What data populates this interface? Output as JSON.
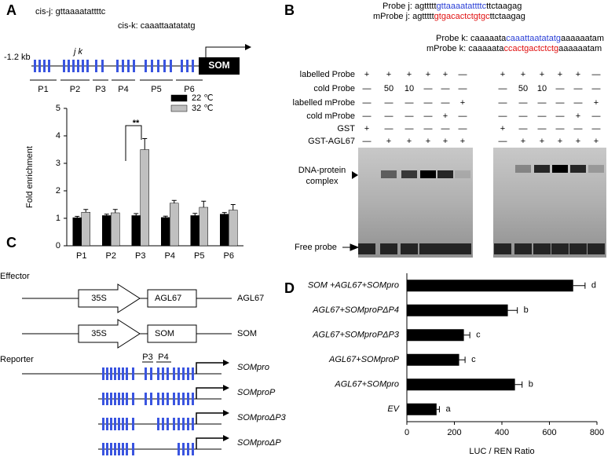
{
  "panel_letters": [
    "A",
    "B",
    "C",
    "D"
  ],
  "panel_a": {
    "cis_j": "cis-j: gttaaaatattttc",
    "cis_k": "cis-k: caaattaatatatg",
    "distance": "-1.2 kb",
    "sites": "j k",
    "gene": "SOM",
    "regions": [
      "P1",
      "P2",
      "P3",
      "P4",
      "P5",
      "P6"
    ],
    "annotation": "**"
  },
  "panel_b": {
    "probes": [
      {
        "label": "Probe j:",
        "parts": [
          {
            "text": "agttttt",
            "color": "#000000"
          },
          {
            "text": "gttaaaatattttc",
            "color": "#2a3fd6"
          },
          {
            "text": "ttctaagag",
            "color": "#000000"
          }
        ]
      },
      {
        "label": "mProbe j:",
        "parts": [
          {
            "text": "agttttt",
            "color": "#000000"
          },
          {
            "text": "gtgacactctgtgc",
            "color": "#e01010"
          },
          {
            "text": "ttctaagag",
            "color": "#000000"
          }
        ]
      },
      {
        "label": "Probe k:",
        "parts": [
          {
            "text": "caaaaata",
            "color": "#000000"
          },
          {
            "text": "caaattaatatatg",
            "color": "#2a3fd6"
          },
          {
            "text": "aaaaaatam",
            "color": "#000000"
          }
        ]
      },
      {
        "label": "mProbe k:",
        "parts": [
          {
            "text": "caaaaata",
            "color": "#000000"
          },
          {
            "text": "ccactgactctctg",
            "color": "#e01010"
          },
          {
            "text": "aaaaaatam",
            "color": "#000000"
          }
        ]
      }
    ],
    "rows": [
      {
        "label": "labelled Probe",
        "left": [
          "+",
          "+",
          "+",
          "+",
          "+",
          "—"
        ],
        "right": [
          "+",
          "+",
          "+",
          "+",
          "+",
          "—"
        ]
      },
      {
        "label": "cold Probe",
        "left": [
          "—",
          "50",
          "10",
          "—",
          "—",
          "—"
        ],
        "right": [
          "—",
          "50",
          "10",
          "—",
          "—",
          "—"
        ]
      },
      {
        "label": "labelled mProbe",
        "left": [
          "—",
          "—",
          "—",
          "—",
          "—",
          "+"
        ],
        "right": [
          "—",
          "—",
          "—",
          "—",
          "—",
          "+"
        ]
      },
      {
        "label": "cold mProbe",
        "left": [
          "—",
          "—",
          "—",
          "—",
          "+",
          "—"
        ],
        "right": [
          "—",
          "—",
          "—",
          "—",
          "+",
          "—"
        ]
      },
      {
        "label": "GST",
        "left": [
          "+",
          "—",
          "—",
          "—",
          "—",
          "—"
        ],
        "right": [
          "+",
          "—",
          "—",
          "—",
          "—",
          "—"
        ]
      },
      {
        "label": "GST-AGL67",
        "left": [
          "—",
          "+",
          "+",
          "+",
          "+",
          "+"
        ],
        "right": [
          "—",
          "+",
          "+",
          "+",
          "+",
          "+"
        ]
      }
    ],
    "complex_label": [
      "DNA-protein",
      "complex"
    ],
    "free_label": "Free probe"
  },
  "panel_c": {
    "effector": "Effector",
    "reporter": "Reporter",
    "promoter": "35S",
    "effectors": [
      "AGL67",
      "SOM"
    ],
    "sites": [
      "P3",
      "P4"
    ],
    "reporters": [
      "SOMpro",
      "SOMproP",
      "SOMproΔP3",
      "SOMproΔP"
    ]
  },
  "chart_data": [
    {
      "type": "bar",
      "y_label": "Fold enrichment",
      "categories": [
        "P1",
        "P2",
        "P3",
        "P4",
        "P5",
        "P6"
      ],
      "series": [
        {
          "name": "22 ℃",
          "color": "#000000",
          "values": [
            1.02,
            1.1,
            1.1,
            1.03,
            1.1,
            1.15
          ],
          "errors": [
            0.05,
            0.05,
            0.07,
            0.05,
            0.08,
            0.06
          ]
        },
        {
          "name": "32 ℃",
          "color": "#c0c0c0",
          "values": [
            1.22,
            1.2,
            3.5,
            1.55,
            1.4,
            1.3
          ],
          "errors": [
            0.1,
            0.12,
            0.4,
            0.1,
            0.22,
            0.2
          ]
        }
      ],
      "ylim": [
        0,
        5
      ],
      "yticks": [
        0,
        1,
        2,
        3,
        4,
        5
      ]
    },
    {
      "type": "hbar",
      "x_label": "LUC / REN Ratio",
      "categories": [
        "SOM +AGL67+SOMpro",
        "AGL67+SOMproPΔP4",
        "AGL67+SOMproPΔP3",
        "AGL67+SOMproP",
        "AGL67+SOMpro",
        "EV"
      ],
      "values": [
        700,
        425,
        240,
        220,
        455,
        125
      ],
      "errors": [
        50,
        40,
        25,
        25,
        30,
        12
      ],
      "significance": [
        "d",
        "b",
        "c",
        "c",
        "b",
        "a"
      ],
      "color": "#000000",
      "xlim": [
        0,
        800
      ],
      "xticks": [
        0,
        200,
        400,
        600,
        800
      ]
    }
  ]
}
